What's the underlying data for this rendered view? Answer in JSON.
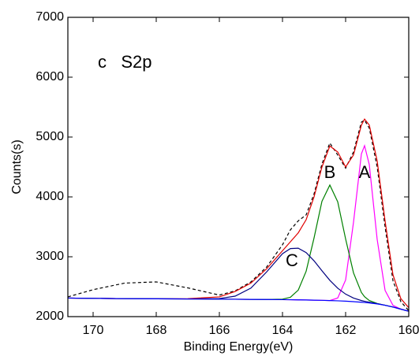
{
  "chart_data": {
    "type": "line",
    "annotations": [
      "c   S2p"
    ],
    "xlabel": "Binding Energy(eV)",
    "ylabel": "Counts(s)",
    "x": [
      170.8,
      170,
      169,
      168,
      167,
      166,
      165.5,
      165,
      164.5,
      164,
      163.75,
      163.5,
      163.25,
      163,
      162.75,
      162.5,
      162.25,
      162,
      161.75,
      161.5,
      161.4,
      161.25,
      161,
      160.75,
      160.5,
      160.25,
      160
    ],
    "series": [
      {
        "color": "#000000",
        "dashed": true,
        "values": [
          2330,
          2450,
          2560,
          2580,
          2480,
          2360,
          2430,
          2580,
          2830,
          3200,
          3450,
          3600,
          3700,
          4050,
          4550,
          4900,
          4700,
          4480,
          4750,
          5250,
          5280,
          5150,
          4500,
          3500,
          2600,
          2250,
          2100
        ]
      },
      {
        "color": "#e00000",
        "values": [
          2310,
          2305,
          2300,
          2298,
          2300,
          2330,
          2420,
          2560,
          2800,
          3100,
          3250,
          3400,
          3620,
          4000,
          4500,
          4850,
          4750,
          4500,
          4700,
          5200,
          5300,
          5200,
          4600,
          3600,
          2700,
          2300,
          2150
        ]
      },
      {
        "name": "A",
        "color": "#ff00ff",
        "values": [
          2310,
          2305,
          2300,
          2298,
          2295,
          2292,
          2290,
          2288,
          2286,
          2284,
          2282,
          2280,
          2278,
          2275,
          2272,
          2268,
          2311,
          2612,
          3576,
          4719,
          4856,
          4539,
          3289,
          2439,
          2189,
          2125,
          2090
        ]
      },
      {
        "name": "B",
        "color": "#008000",
        "values": [
          2310,
          2305,
          2300,
          2298,
          2295,
          2292,
          2290,
          2288,
          2286,
          2292,
          2323,
          2444,
          2759,
          3315,
          3926,
          4198,
          3918,
          3298,
          2731,
          2404,
          2333,
          2269,
          2220,
          2190,
          2160,
          2125,
          2090
        ]
      },
      {
        "name": "C",
        "color": "#000080",
        "values": [
          2310,
          2305,
          2300,
          2298,
          2295,
          2302,
          2342,
          2476,
          2748,
          3051,
          3137,
          3143,
          3069,
          2932,
          2767,
          2606,
          2474,
          2376,
          2310,
          2268,
          2256,
          2240,
          2216,
          2190,
          2160,
          2125,
          2090
        ]
      },
      {
        "color": "#0000ff",
        "values": [
          2310,
          2305,
          2300,
          2298,
          2295,
          2292,
          2290,
          2288,
          2286,
          2284,
          2282,
          2280,
          2278,
          2275,
          2272,
          2268,
          2264,
          2258,
          2250,
          2240,
          2236,
          2228,
          2212,
          2190,
          2160,
          2125,
          2090
        ]
      }
    ],
    "xlim": [
      170.8,
      160
    ],
    "xticks": [
      170,
      168,
      166,
      164,
      162,
      160
    ],
    "ylim": [
      2000,
      7000
    ],
    "yticks": [
      2000,
      3000,
      4000,
      5000,
      6000,
      7000
    ]
  }
}
